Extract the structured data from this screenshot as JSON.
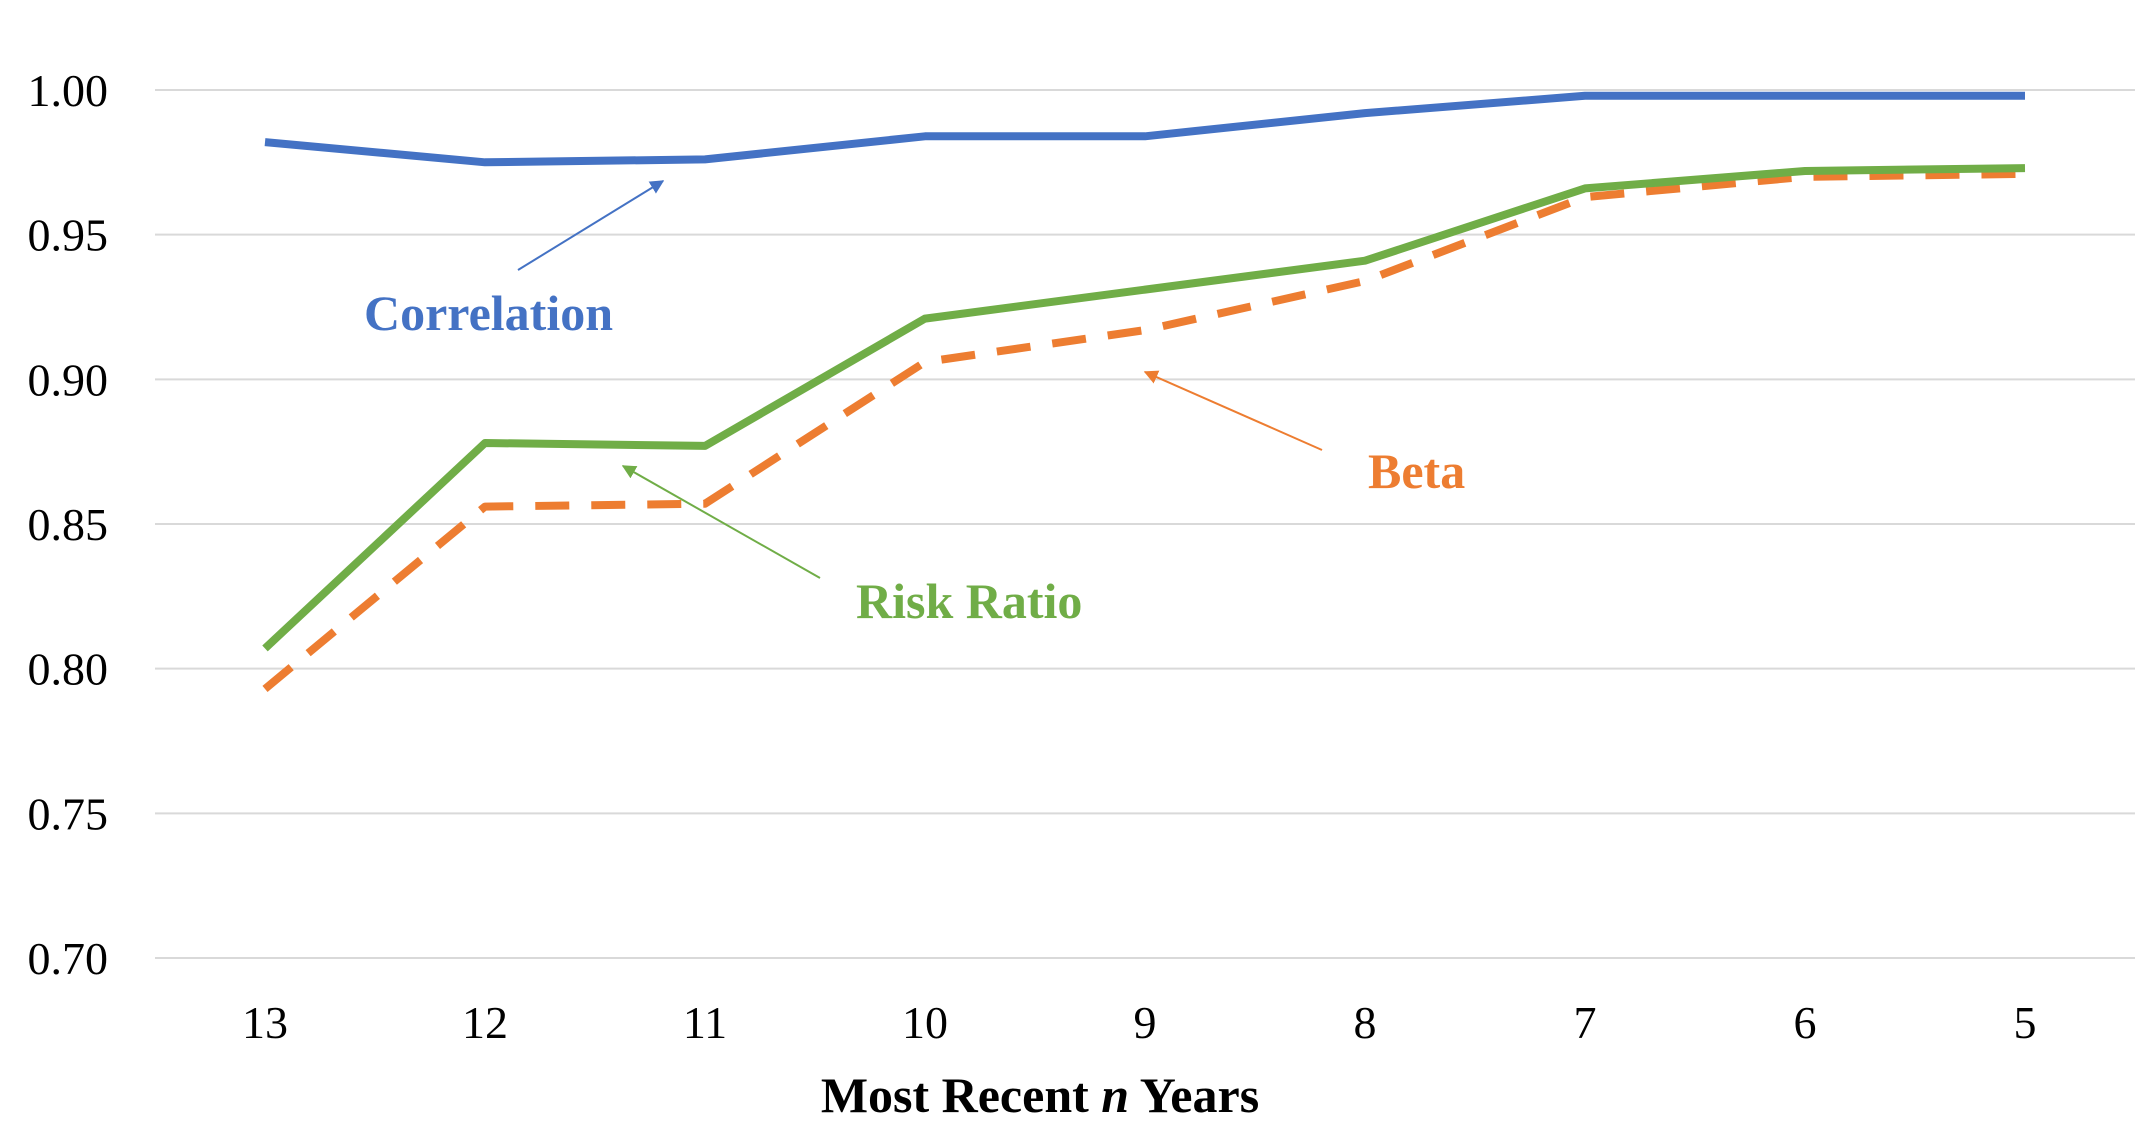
{
  "chart_data": {
    "type": "line",
    "title": "",
    "xlabel": {
      "prefix": "Most Recent ",
      "italic": "n",
      "suffix": " Years"
    },
    "ylabel": "",
    "categories": [
      "13",
      "12",
      "11",
      "10",
      "9",
      "8",
      "7",
      "6",
      "5"
    ],
    "ylim": [
      0.7,
      1.0
    ],
    "yticks": [
      "0.70",
      "0.75",
      "0.80",
      "0.85",
      "0.90",
      "0.95",
      "1.00"
    ],
    "grid": true,
    "legend": "none (series labeled inline with arrows)",
    "series": [
      {
        "name": "Correlation",
        "key": "correlation",
        "color": "#4472c4",
        "style": "solid",
        "values": [
          0.982,
          0.975,
          0.976,
          0.984,
          0.984,
          0.992,
          0.998,
          0.998,
          0.998
        ]
      },
      {
        "name": "Risk Ratio",
        "key": "risk_ratio",
        "color": "#70ad47",
        "style": "solid",
        "values": [
          0.807,
          0.878,
          0.877,
          0.921,
          0.931,
          0.941,
          0.966,
          0.972,
          0.973
        ]
      },
      {
        "name": "Beta",
        "key": "beta",
        "color": "#ed7d31",
        "style": "dashed",
        "values": [
          0.793,
          0.856,
          0.857,
          0.906,
          0.917,
          0.934,
          0.963,
          0.97,
          0.971
        ]
      }
    ]
  }
}
